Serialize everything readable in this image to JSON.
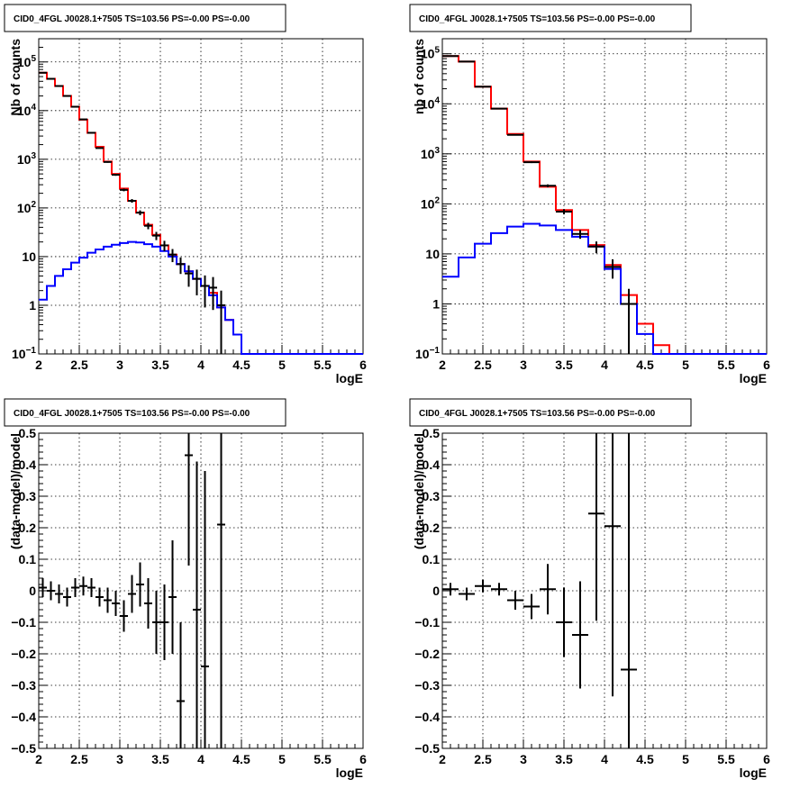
{
  "colors": {
    "data": "#000000",
    "model": "#ff0000",
    "component": "#0000ff",
    "background": "#ffffff",
    "grid": "#000000"
  },
  "chart_data": [
    {
      "panel": "top-left",
      "type": "line",
      "title": "CID0_4FGL J0028.1+7505 TS=103.56 PS=-0.00 PS=-0.00",
      "xlabel": "logE",
      "ylabel": "Nb of counts",
      "xlim": [
        2,
        6
      ],
      "ylim": [
        0.1,
        300000
      ],
      "yscale": "log",
      "grid": true,
      "xticks": [
        2,
        2.5,
        3,
        3.5,
        4,
        4.5,
        5,
        5.5,
        6
      ],
      "xtick_labels": [
        "2",
        "2.5",
        "3",
        "3.5",
        "4",
        "4.5",
        "5",
        "5.5",
        "6"
      ],
      "yticks": [
        0.1,
        1,
        10,
        100,
        1000,
        10000,
        100000
      ],
      "ytick_labels": [
        [
          "10",
          "−1"
        ],
        [
          "1",
          ""
        ],
        [
          "10",
          ""
        ],
        [
          "10",
          "2"
        ],
        [
          "10",
          "3"
        ],
        [
          "10",
          "4"
        ],
        [
          "10",
          "5"
        ]
      ],
      "bin_edges": [
        2.0,
        2.1,
        2.2,
        2.3,
        2.4,
        2.5,
        2.6,
        2.7,
        2.8,
        2.9,
        3.0,
        3.1,
        3.2,
        3.3,
        3.4,
        3.5,
        3.6,
        3.7,
        3.8,
        3.9,
        4.0,
        4.1,
        4.2,
        4.3,
        4.4,
        4.5,
        4.6,
        4.7,
        4.8,
        4.9,
        5.0,
        5.1,
        5.2,
        5.3,
        5.4,
        5.5,
        5.6,
        5.7,
        5.8,
        5.9,
        6.0
      ],
      "series": [
        {
          "role": "model",
          "color": "#ff0000",
          "values": [
            60000,
            45000,
            32000,
            20000,
            12000,
            6500,
            3500,
            1800,
            900,
            500,
            250,
            140,
            80,
            45,
            28,
            17,
            11,
            7,
            5,
            3.5,
            2.5,
            1.8,
            0.9,
            0.5,
            0.25,
            0.1,
            0.1,
            0.1,
            0.1,
            0.1,
            0.1,
            0.1,
            0.1,
            0.1,
            0.1,
            0.1,
            0.1,
            0.1,
            0.1,
            0.1
          ]
        },
        {
          "role": "component",
          "color": "#0000ff",
          "values": [
            1.3,
            2.5,
            4.0,
            5.5,
            7.5,
            9.5,
            12,
            14,
            16,
            17.5,
            19,
            20,
            19.5,
            18,
            16,
            13,
            10,
            7,
            5,
            3.5,
            2.5,
            1.6,
            0.9,
            0.5,
            0.25,
            0.1,
            0.1,
            0.1,
            0.1,
            0.1,
            0.1,
            0.1,
            0.1,
            0.1,
            0.1,
            0.1,
            0.1,
            0.1,
            0.1,
            0.1
          ]
        },
        {
          "role": "data",
          "color": "#000000",
          "errorbars": true,
          "x": [
            2.05,
            2.15,
            2.25,
            2.35,
            2.45,
            2.55,
            2.65,
            2.75,
            2.85,
            2.95,
            3.05,
            3.15,
            3.25,
            3.35,
            3.45,
            3.55,
            3.65,
            3.75,
            3.85,
            3.95,
            4.05,
            4.15,
            4.25
          ],
          "y": [
            60000,
            45000,
            32000,
            20000,
            12000,
            6600,
            3500,
            1700,
            880,
            480,
            235,
            140,
            80,
            43,
            27,
            17,
            11,
            7,
            4.5,
            3.5,
            2.5,
            2.3,
            1.0
          ],
          "yerr": [
            250,
            210,
            180,
            140,
            110,
            80,
            60,
            40,
            30,
            22,
            15,
            12,
            9,
            6.5,
            5.2,
            4.1,
            3.3,
            2.6,
            2.1,
            1.9,
            1.6,
            1.5,
            1.0
          ]
        }
      ]
    },
    {
      "panel": "top-right",
      "type": "line",
      "title": "CID0_4FGL J0028.1+7505 TS=103.56 PS=-0.00 PS=-0.00",
      "xlabel": "logE",
      "ylabel": "nb of counts",
      "xlim": [
        2,
        6
      ],
      "ylim": [
        0.1,
        200000
      ],
      "yscale": "log",
      "grid": true,
      "xticks": [
        2,
        2.5,
        3,
        3.5,
        4,
        4.5,
        5,
        5.5,
        6
      ],
      "xtick_labels": [
        "2",
        "2.5",
        "3",
        "3.5",
        "4",
        "4.5",
        "5",
        "5.5",
        "6"
      ],
      "yticks": [
        0.1,
        1,
        10,
        100,
        1000,
        10000,
        100000
      ],
      "ytick_labels": [
        [
          "10",
          "−1"
        ],
        [
          "1",
          ""
        ],
        [
          "10",
          ""
        ],
        [
          "10",
          "2"
        ],
        [
          "10",
          "3"
        ],
        [
          "10",
          "4"
        ],
        [
          "10",
          "5"
        ]
      ],
      "bin_edges": [
        2.0,
        2.2,
        2.4,
        2.6,
        2.8,
        3.0,
        3.2,
        3.4,
        3.6,
        3.8,
        4.0,
        4.2,
        4.4,
        4.6,
        4.8,
        5.0,
        5.2,
        5.4,
        5.6,
        5.8,
        6.0
      ],
      "series": [
        {
          "role": "model",
          "color": "#ff0000",
          "values": [
            90000,
            70000,
            22000,
            8000,
            2500,
            700,
            220,
            75,
            30,
            15,
            6,
            1.5,
            0.4,
            0.15,
            0.1,
            0.1,
            0.1,
            0.1,
            0.1,
            0.1
          ]
        },
        {
          "role": "component",
          "color": "#0000ff",
          "values": [
            3.5,
            8.5,
            16,
            26,
            35,
            40,
            37,
            30,
            22,
            14,
            5,
            1.0,
            0.25,
            0.1,
            0.1,
            0.1,
            0.1,
            0.1,
            0.1,
            0.1
          ]
        },
        {
          "role": "data",
          "color": "#000000",
          "errorbars": true,
          "x": [
            2.1,
            2.3,
            2.5,
            2.7,
            2.9,
            3.1,
            3.3,
            3.5,
            3.7,
            3.9,
            4.1,
            4.3
          ],
          "y": [
            90000,
            70000,
            22000,
            8000,
            2400,
            680,
            230,
            70,
            25,
            14,
            5.5,
            1.0
          ],
          "yerr": [
            300,
            260,
            150,
            90,
            50,
            26,
            15,
            8.4,
            5,
            3.7,
            2.3,
            1.0
          ]
        }
      ]
    },
    {
      "panel": "bottom-left",
      "type": "scatter",
      "title": "CID0_4FGL J0028.1+7505 TS=103.56 PS=-0.00 PS=-0.00",
      "xlabel": "logE",
      "ylabel": "(data-model)/model",
      "xlim": [
        2,
        6
      ],
      "ylim": [
        -0.5,
        0.5
      ],
      "grid": true,
      "xticks": [
        2,
        2.5,
        3,
        3.5,
        4,
        4.5,
        5,
        5.5,
        6
      ],
      "xtick_labels": [
        "2",
        "2.5",
        "3",
        "3.5",
        "4",
        "4.5",
        "5",
        "5.5",
        "6"
      ],
      "yticks": [
        -0.5,
        -0.4,
        -0.3,
        -0.2,
        -0.1,
        0,
        0.1,
        0.2,
        0.3,
        0.4,
        0.5
      ],
      "ytick_labels": [
        "−0.5",
        "−0.4",
        "−0.3",
        "−0.2",
        "−0.1",
        "0",
        "0.1",
        "0.2",
        "0.3",
        "0.4",
        "0.5"
      ],
      "xbin_halfwidth": 0.05,
      "series": [
        {
          "role": "data",
          "color": "#000000",
          "errorbars": true,
          "x": [
            2.05,
            2.15,
            2.25,
            2.35,
            2.45,
            2.55,
            2.65,
            2.75,
            2.85,
            2.95,
            3.05,
            3.15,
            3.25,
            3.35,
            3.45,
            3.55,
            3.65,
            3.75,
            3.85,
            3.95,
            4.05,
            4.25
          ],
          "y": [
            0.01,
            0.0,
            -0.01,
            -0.02,
            0.01,
            0.015,
            0.01,
            -0.02,
            -0.03,
            -0.04,
            -0.08,
            -0.01,
            0.02,
            -0.04,
            -0.1,
            -0.1,
            -0.02,
            -0.35,
            0.43,
            -0.06,
            -0.24,
            0.21
          ],
          "yerr": [
            0.03,
            0.03,
            0.03,
            0.03,
            0.03,
            0.03,
            0.03,
            0.03,
            0.04,
            0.04,
            0.05,
            0.06,
            0.07,
            0.08,
            0.1,
            0.12,
            0.18,
            0.25,
            0.35,
            0.47,
            0.62,
            1.0
          ]
        }
      ]
    },
    {
      "panel": "bottom-right",
      "type": "scatter",
      "title": "CID0_4FGL J0028.1+7505 TS=103.56 PS=-0.00 PS=-0.00",
      "xlabel": "logE",
      "ylabel": "(data-model)/model",
      "xlim": [
        2,
        6
      ],
      "ylim": [
        -0.5,
        0.5
      ],
      "grid": true,
      "xticks": [
        2,
        2.5,
        3,
        3.5,
        4,
        4.5,
        5,
        5.5,
        6
      ],
      "xtick_labels": [
        "2",
        "2.5",
        "3",
        "3.5",
        "4",
        "4.5",
        "5",
        "5.5",
        "6"
      ],
      "yticks": [
        -0.5,
        -0.4,
        -0.3,
        -0.2,
        -0.1,
        0,
        0.1,
        0.2,
        0.3,
        0.4,
        0.5
      ],
      "ytick_labels": [
        "−0.5",
        "−0.4",
        "−0.3",
        "−0.2",
        "−0.1",
        "0",
        "0.1",
        "0.2",
        "0.3",
        "0.4",
        "0.5"
      ],
      "xbin_halfwidth": 0.1,
      "series": [
        {
          "role": "data",
          "color": "#000000",
          "errorbars": true,
          "x": [
            2.1,
            2.3,
            2.5,
            2.7,
            2.9,
            3.1,
            3.3,
            3.5,
            3.7,
            3.9,
            4.1,
            4.3
          ],
          "y": [
            0.005,
            -0.01,
            0.015,
            0.005,
            -0.03,
            -0.05,
            0.005,
            -0.1,
            -0.14,
            0.245,
            0.205,
            -0.25
          ],
          "yerr": [
            0.02,
            0.02,
            0.02,
            0.02,
            0.03,
            0.04,
            0.08,
            0.11,
            0.17,
            0.34,
            0.54,
            1.0
          ]
        }
      ]
    }
  ]
}
